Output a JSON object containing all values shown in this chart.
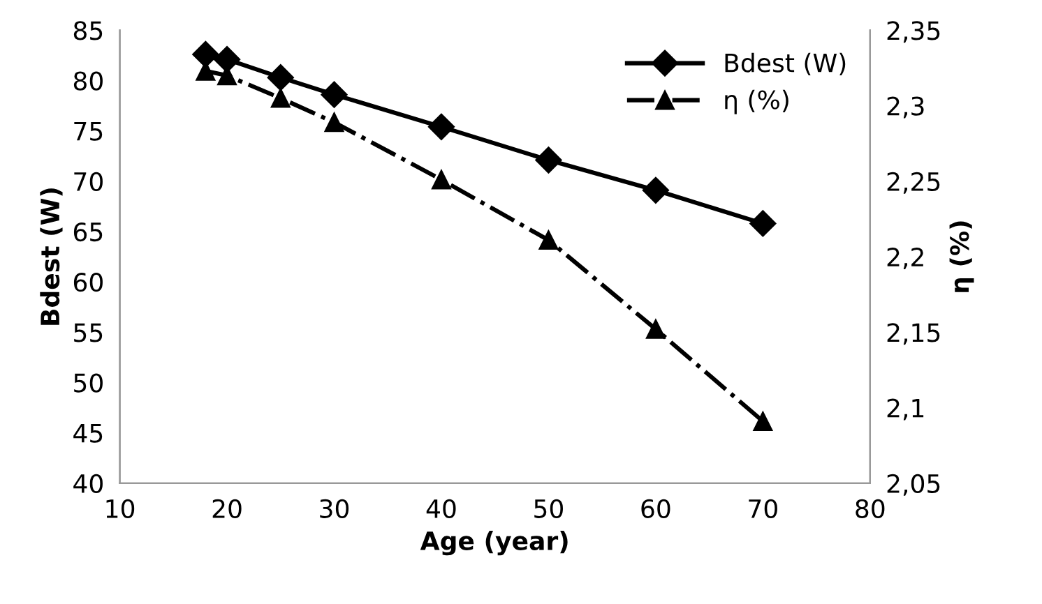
{
  "chart_data": {
    "type": "line",
    "xlabel": "Age (year)",
    "ylabel": "Bdest (W)",
    "y2label": "η (%)",
    "x": [
      18,
      20,
      25,
      30,
      40,
      50,
      60,
      70
    ],
    "xlim": [
      10,
      80
    ],
    "xticks": [
      10,
      20,
      30,
      40,
      50,
      60,
      70,
      80
    ],
    "ylim": [
      40,
      85
    ],
    "yticks": [
      40,
      45,
      50,
      55,
      60,
      65,
      70,
      75,
      80,
      85
    ],
    "y2lim": [
      2.05,
      2.35
    ],
    "y2ticks": [
      {
        "value": 2.05,
        "label": "2,05"
      },
      {
        "value": 2.1,
        "label": "2,1"
      },
      {
        "value": 2.15,
        "label": "2,15"
      },
      {
        "value": 2.2,
        "label": "2,2"
      },
      {
        "value": 2.25,
        "label": "2,25"
      },
      {
        "value": 2.3,
        "label": "2,3"
      },
      {
        "value": 2.35,
        "label": "2,35"
      }
    ],
    "grid": false,
    "legend": "top right",
    "series": [
      {
        "name": "Bdest (W)",
        "color": "#000000",
        "marker": "diamond",
        "line_style": "solid",
        "values": [
          82.6,
          82.1,
          80.3,
          78.6,
          75.4,
          72.1,
          69.1,
          65.8
        ]
      },
      {
        "name": "η (%)",
        "color": "#000000",
        "marker": "triangle",
        "line_style": "dashdot",
        "axis": "y2",
        "values": [
          2.323,
          2.32,
          2.305,
          2.289,
          2.251,
          2.211,
          2.152,
          2.091
        ]
      }
    ]
  }
}
